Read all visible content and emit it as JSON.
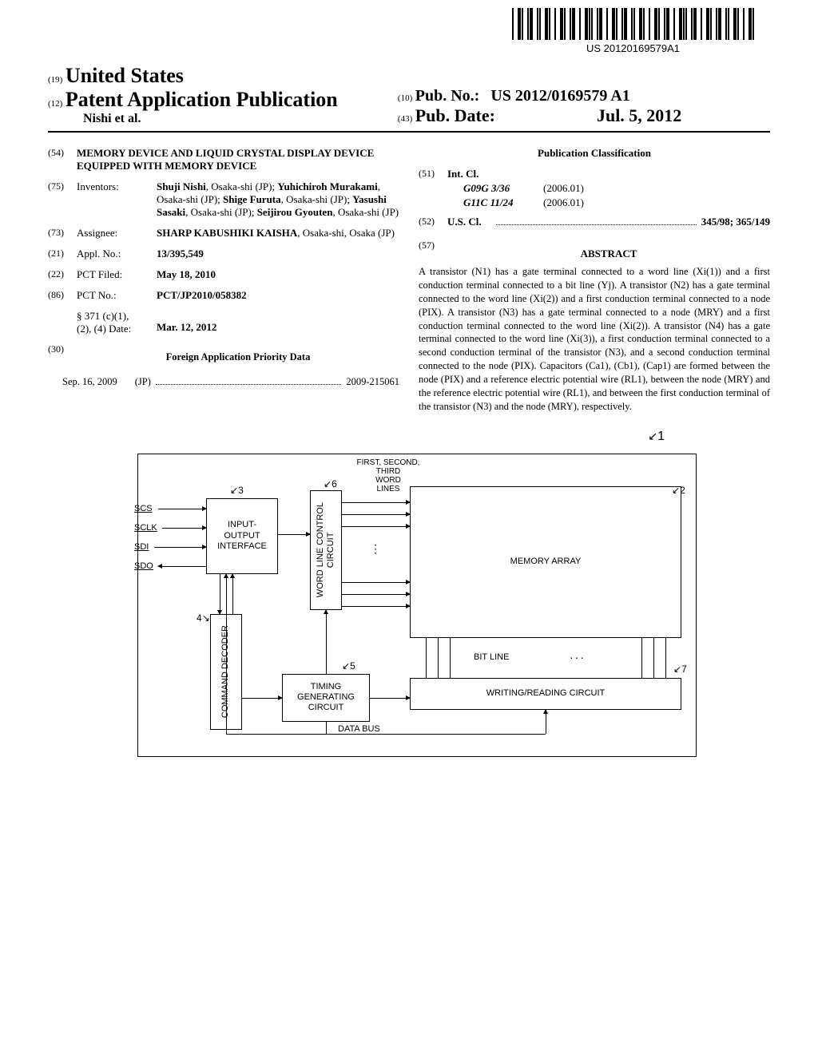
{
  "barcode_text": "US 20120169579A1",
  "header": {
    "code19": "(19)",
    "country": "United States",
    "code12": "(12)",
    "type": "Patent Application Publication",
    "authors": "Nishi et al.",
    "code10": "(10)",
    "pubno_label": "Pub. No.:",
    "pubno": "US 2012/0169579 A1",
    "code43": "(43)",
    "pubdate_label": "Pub. Date:",
    "pubdate": "Jul. 5, 2012"
  },
  "left_col": {
    "title_code": "(54)",
    "title": "MEMORY DEVICE AND LIQUID CRYSTAL DISPLAY DEVICE EQUIPPED WITH MEMORY DEVICE",
    "inventors_code": "(75)",
    "inventors_label": "Inventors:",
    "inventors": "<b>Shuji Nishi</b>, Osaka-shi (JP); <b>Yuhichiroh Murakami</b>, Osaka-shi (JP); <b>Shige Furuta</b>, Osaka-shi (JP); <b>Yasushi Sasaki</b>, Osaka-shi (JP); <b>Seijirou Gyouten</b>, Osaka-shi (JP)",
    "assignee_code": "(73)",
    "assignee_label": "Assignee:",
    "assignee": "<b>SHARP KABUSHIKI KAISHA</b>, Osaka-shi, Osaka (JP)",
    "applno_code": "(21)",
    "applno_label": "Appl. No.:",
    "applno": "13/395,549",
    "pct_filed_code": "(22)",
    "pct_filed_label": "PCT Filed:",
    "pct_filed": "May 18, 2010",
    "pctno_code": "(86)",
    "pctno_label": "PCT No.:",
    "pctno": "PCT/JP2010/058382",
    "para371_label": "§ 371 (c)(1),\n(2), (4) Date:",
    "para371_date": "Mar. 12, 2012",
    "priority_code": "(30)",
    "priority_title": "Foreign Application Priority Data",
    "priority_date": "Sep. 16, 2009",
    "priority_country": "(JP)",
    "priority_no": "2009-215061"
  },
  "right_col": {
    "pub_class_title": "Publication Classification",
    "intcl_code": "(51)",
    "intcl_label": "Int. Cl.",
    "intcl": [
      {
        "class": "G09G 3/36",
        "edition": "(2006.01)"
      },
      {
        "class": "G11C 11/24",
        "edition": "(2006.01)"
      }
    ],
    "uscl_code": "(52)",
    "uscl_label": "U.S. Cl.",
    "uscl_value": "345/98; 365/149",
    "abstract_code": "(57)",
    "abstract_title": "ABSTRACT",
    "abstract": "A transistor (N1) has a gate terminal connected to a word line (Xi(1)) and a first conduction terminal connected to a bit line (Yj). A transistor (N2) has a gate terminal connected to the word line (Xi(2)) and a first conduction terminal connected to a node (PIX). A transistor (N3) has a gate terminal connected to a node (MRY) and a first conduction terminal connected to the word line (Xi(2)). A transistor (N4) has a gate terminal connected to the word line (Xi(3)), a first conduction terminal connected to a second conduction terminal of the transistor (N3), and a second conduction terminal connected to the node (PIX). Capacitors (Ca1), (Cb1), (Cap1) are formed between the node (PIX) and a reference electric potential wire (RL1), between the node (MRY) and the reference electric potential wire (RL1), and between the first conduction terminal of the transistor (N3) and the node (MRY), respectively."
  },
  "figure": {
    "ref1": "1",
    "signals": [
      "SCS",
      "SCLK",
      "SDI",
      "SDO"
    ],
    "box3": {
      "ref": "3",
      "text": "INPUT-\nOUTPUT\nINTERFACE"
    },
    "box4": {
      "ref": "4",
      "text": "COMMAND DECODER"
    },
    "box6": {
      "ref": "6",
      "text": "WORD LINE CONTROL\nCIRCUIT"
    },
    "box5": {
      "ref": "5",
      "text": "TIMING\nGENERATING\nCIRCUIT"
    },
    "box2": {
      "ref": "2",
      "text": "MEMORY ARRAY"
    },
    "box7": {
      "ref": "7",
      "text": "WRITING/READING CIRCUIT"
    },
    "wl_label": "FIRST, SECOND,\nTHIRD\nWORD\nLINES",
    "bitline": "BIT LINE",
    "databus": "DATA BUS"
  }
}
